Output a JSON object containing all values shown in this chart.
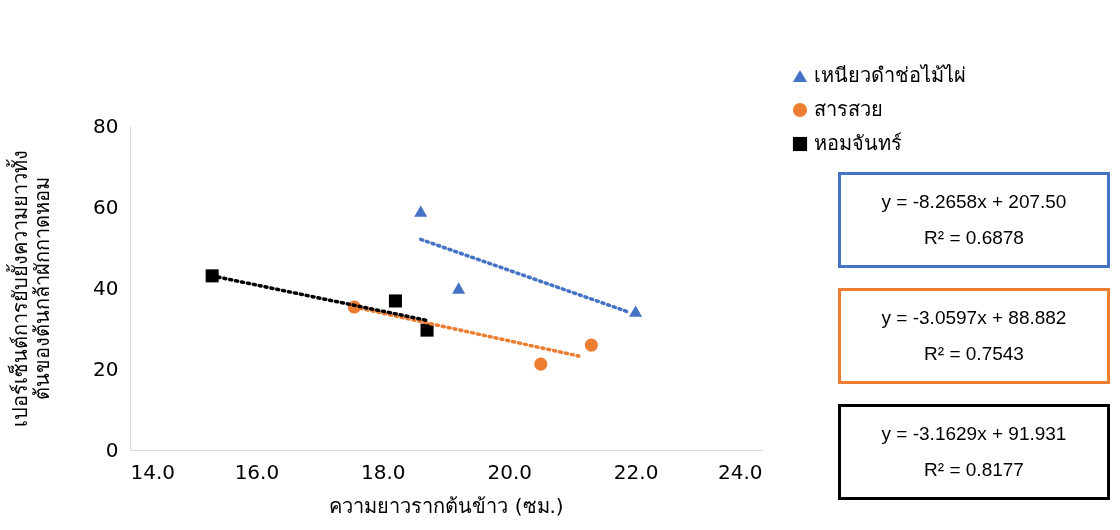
{
  "chart_data": {
    "type": "scatter",
    "xlabel": "ความยาวรากต้นข้าว (ซม.)",
    "ylabel": "เปอร์เซ็นต์การยับยั้งความยาวทั้ง\nต้นของต้นกล้าผักกาดหอม",
    "xlim": [
      14,
      24
    ],
    "xticks": [
      {
        "value": 14,
        "label": "14.0"
      },
      {
        "value": 16,
        "label": "16.0"
      },
      {
        "value": 18,
        "label": "18.0"
      },
      {
        "value": 20,
        "label": "20.0"
      },
      {
        "value": 22,
        "label": "22.0"
      },
      {
        "value": 24,
        "label": "24.0"
      }
    ],
    "ylim": [
      0,
      80
    ],
    "yticks": [
      0,
      20,
      40,
      60,
      80
    ],
    "grid": false,
    "legend": "top right",
    "series": [
      {
        "name": "เหนียวดำช่อไม้ไผ่",
        "color": "#4472c4",
        "marker": "triangle",
        "x": [
          18.6,
          19.2,
          22.0
        ],
        "values": [
          59,
          40,
          34.3
        ]
      },
      {
        "name": "สารสวย",
        "color": "#ed7d31",
        "marker": "circle",
        "x": [
          17.55,
          20.5,
          21.3
        ],
        "values": [
          35.3,
          21.2,
          25.9
        ]
      },
      {
        "name": "หอมจันทร์",
        "color": "#000000",
        "marker": "square",
        "x": [
          15.3,
          18.2,
          18.7
        ],
        "values": [
          43,
          36.8,
          29.6
        ]
      },
      {
        "type": "line",
        "color": "#4472c4",
        "line_style": "dotted",
        "x": [
          18.6,
          21.9
        ],
        "values": [
          52,
          34
        ]
      },
      {
        "type": "line",
        "color": "#ed7d31",
        "line_style": "dotted",
        "x": [
          17.55,
          21.1
        ],
        "values": [
          35.3,
          23.2
        ]
      },
      {
        "type": "line",
        "color": "#000000",
        "line_style": "dotted",
        "x": [
          15.3,
          18.7
        ],
        "values": [
          43,
          32
        ]
      }
    ],
    "annotations": [
      "y = -8.2658x + 207.50\nR² = 0.6878",
      "y = -3.0597x + 88.882\nR² = 0.7543",
      "y = -3.1629x + 91.931\nR² = 0.8177"
    ]
  }
}
